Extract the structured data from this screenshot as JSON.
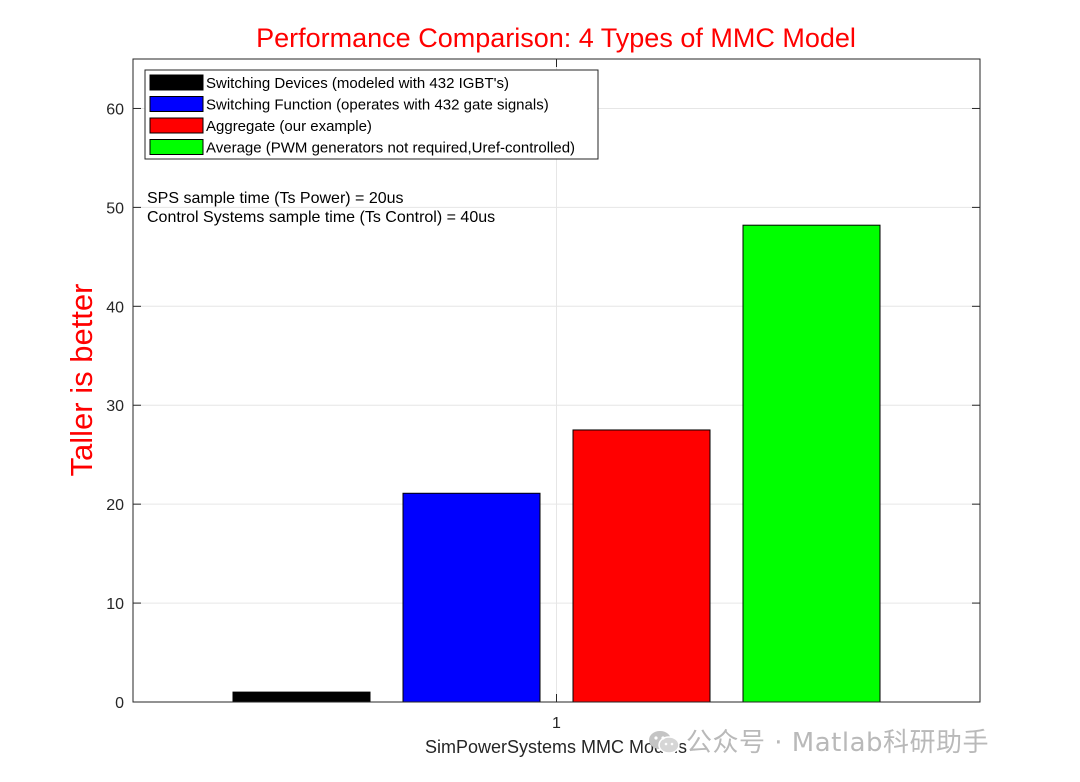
{
  "chart_data": {
    "type": "bar",
    "title": "Performance Comparison: 4 Types of MMC Model",
    "xlabel": "SimPowerSystems MMC Models",
    "ylabel": "Taller is better",
    "categories": [
      "1"
    ],
    "xlim": [
      0.5,
      1.5
    ],
    "ylim": [
      0,
      65
    ],
    "yticks": [
      0,
      10,
      20,
      30,
      40,
      50,
      60
    ],
    "grid": true,
    "legend_position": "top-left",
    "series": [
      {
        "name": "Switching Devices (modeled with 432 IGBT's)",
        "color": "#000000",
        "values": [
          1.0
        ]
      },
      {
        "name": "Switching Function (operates with 432 gate signals)",
        "color": "#0000ff",
        "values": [
          21.1
        ]
      },
      {
        "name": "Aggregate (our example)",
        "color": "#ff0000",
        "values": [
          27.5
        ]
      },
      {
        "name": "Average (PWM generators not required,Uref-controlled)",
        "color": "#00ff00",
        "values": [
          48.2
        ]
      }
    ],
    "annotations": [
      "SPS sample time (Ts Power) = 20us",
      "Control Systems sample time (Ts Control) = 40us"
    ],
    "title_color": "#ff0000",
    "ylabel_color": "#ff0000"
  },
  "watermark": {
    "icon": "wechat-icon",
    "text": "公众号 · Matlab科研助手"
  }
}
